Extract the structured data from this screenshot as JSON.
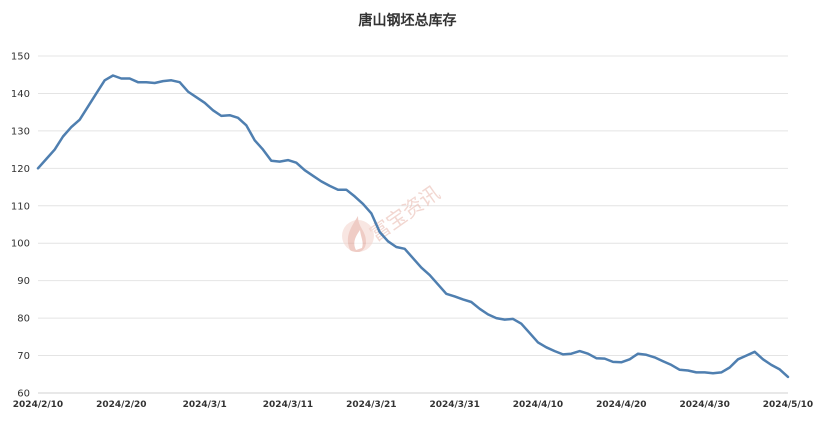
{
  "chart_data": {
    "type": "line",
    "title": "唐山钢坯总库存",
    "xlabel": "",
    "ylabel": "",
    "ylim": [
      60,
      150
    ],
    "yticks": [
      60,
      70,
      80,
      90,
      100,
      110,
      120,
      130,
      140,
      150
    ],
    "x_start": "2024/2/10",
    "x_end": "2024/5/10",
    "xticks": [
      "2024/2/10",
      "2024/2/20",
      "2024/3/1",
      "2024/3/11",
      "2024/3/21",
      "2024/3/31",
      "2024/4/10",
      "2024/4/20",
      "2024/4/30",
      "2024/5/10"
    ],
    "grid": true,
    "series": [
      {
        "color": "#4f7fb0",
        "x": [
          "2024/2/10",
          "2024/2/11",
          "2024/2/12",
          "2024/2/13",
          "2024/2/14",
          "2024/2/15",
          "2024/2/16",
          "2024/2/17",
          "2024/2/18",
          "2024/2/19",
          "2024/2/20",
          "2024/2/21",
          "2024/2/22",
          "2024/2/23",
          "2024/2/24",
          "2024/2/25",
          "2024/2/26",
          "2024/2/27",
          "2024/2/28",
          "2024/2/29",
          "2024/3/1",
          "2024/3/2",
          "2024/3/3",
          "2024/3/4",
          "2024/3/5",
          "2024/3/6",
          "2024/3/7",
          "2024/3/8",
          "2024/3/9",
          "2024/3/10",
          "2024/3/11",
          "2024/3/12",
          "2024/3/13",
          "2024/3/14",
          "2024/3/15",
          "2024/3/16",
          "2024/3/17",
          "2024/3/18",
          "2024/3/19",
          "2024/3/20",
          "2024/3/21",
          "2024/3/22",
          "2024/3/23",
          "2024/3/24",
          "2024/3/25",
          "2024/3/26",
          "2024/3/27",
          "2024/3/28",
          "2024/3/29",
          "2024/3/30",
          "2024/3/31",
          "2024/4/1",
          "2024/4/2",
          "2024/4/3",
          "2024/4/4",
          "2024/4/5",
          "2024/4/6",
          "2024/4/7",
          "2024/4/8",
          "2024/4/9",
          "2024/4/10",
          "2024/4/11",
          "2024/4/12",
          "2024/4/13",
          "2024/4/14",
          "2024/4/15",
          "2024/4/16",
          "2024/4/17",
          "2024/4/18",
          "2024/4/19",
          "2024/4/20",
          "2024/4/21",
          "2024/4/22",
          "2024/4/23",
          "2024/4/24",
          "2024/4/25",
          "2024/4/26",
          "2024/4/27",
          "2024/4/28",
          "2024/4/29",
          "2024/4/30",
          "2024/5/1",
          "2024/5/2",
          "2024/5/3",
          "2024/5/4",
          "2024/5/5",
          "2024/5/6",
          "2024/5/7",
          "2024/5/8",
          "2024/5/9",
          "2024/5/10"
        ],
        "values": [
          120,
          122.5,
          125,
          128.5,
          131,
          133,
          136.5,
          140,
          143.5,
          144.8,
          144,
          144,
          143,
          143,
          142.8,
          143.3,
          143.5,
          143,
          140.5,
          139,
          137.5,
          135.5,
          134,
          134.2,
          133.5,
          131.5,
          127.5,
          125,
          122,
          121.8,
          122.2,
          121.5,
          119.5,
          118,
          116.5,
          115.3,
          114.3,
          114.3,
          112.5,
          110.5,
          108,
          103,
          100.5,
          99,
          98.5,
          96,
          93.5,
          91.5,
          89,
          86.5,
          85.8,
          85,
          84.3,
          82.5,
          81,
          80,
          79.6,
          79.8,
          78.5,
          76,
          73.5,
          72.2,
          71.2,
          70.3,
          70.5,
          71.2,
          70.5,
          69.3,
          69.2,
          68.3,
          68.2,
          69,
          70.5,
          70.2,
          69.5,
          68.5,
          67.5,
          66.2,
          66,
          65.5,
          65.5,
          65.3,
          65.5,
          66.8,
          69,
          70,
          71,
          69,
          67.5,
          66.3,
          64.3
        ]
      }
    ]
  },
  "watermark": {
    "text": "富宝资讯",
    "icon": "flame-logo-icon"
  }
}
